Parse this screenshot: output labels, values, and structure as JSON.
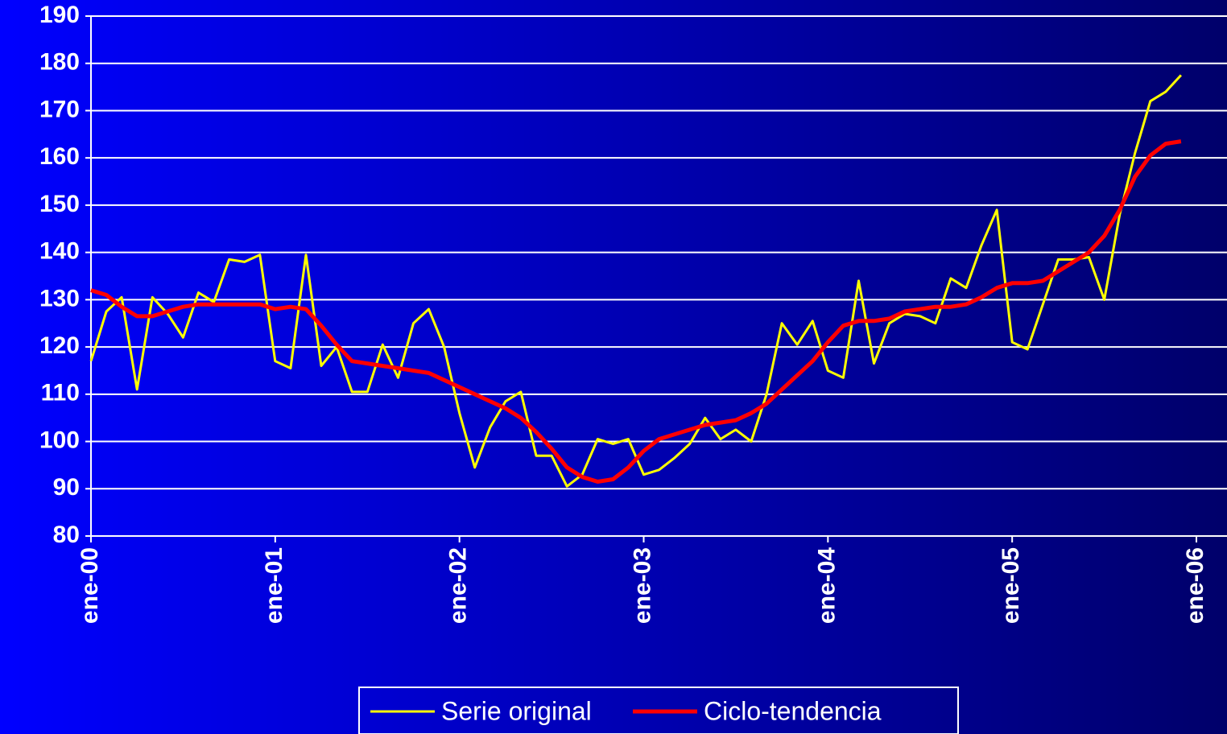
{
  "chart_data": {
    "type": "line",
    "categories": [
      "ene-00",
      null,
      null,
      null,
      null,
      null,
      null,
      null,
      null,
      null,
      null,
      null,
      "ene-01",
      null,
      null,
      null,
      null,
      null,
      null,
      null,
      null,
      null,
      null,
      null,
      "ene-02",
      null,
      null,
      null,
      null,
      null,
      null,
      null,
      null,
      null,
      null,
      null,
      "ene-03",
      null,
      null,
      null,
      null,
      null,
      null,
      null,
      null,
      null,
      null,
      null,
      "ene-04",
      null,
      null,
      null,
      null,
      null,
      null,
      null,
      null,
      null,
      null,
      null,
      "ene-05",
      null,
      null,
      null,
      null,
      null,
      null,
      null,
      null,
      null,
      null,
      null,
      "ene-06"
    ],
    "series": [
      {
        "name": "Serie original",
        "color": "#ffff00",
        "values": [
          117,
          127.5,
          130.5,
          111,
          130.5,
          127,
          122,
          131.5,
          129.5,
          138.5,
          138,
          139.5,
          117,
          115.5,
          139.5,
          116,
          120,
          110.5,
          110.5,
          120.5,
          113.5,
          125,
          128,
          120,
          106,
          94.5,
          103,
          108.5,
          110.5,
          97,
          97,
          90.5,
          93,
          100.5,
          99.5,
          100.5,
          93,
          94,
          96.5,
          99.5,
          105,
          100.5,
          102.5,
          100,
          110,
          125,
          120.5,
          125.5,
          115,
          113.5,
          134,
          116.5,
          125,
          127,
          126.5,
          125,
          134.5,
          132.5,
          141.5,
          149,
          121,
          119.5,
          129,
          138.5,
          138.5,
          139,
          130,
          148,
          161,
          172,
          174,
          177.5,
          null
        ]
      },
      {
        "name": "Ciclo-tendencia",
        "color": "#ff0000",
        "values": [
          132,
          131,
          128.5,
          126.5,
          126.5,
          127.5,
          128.5,
          129,
          129,
          129,
          129,
          129,
          128,
          128.5,
          128,
          124.5,
          120.5,
          117,
          116.5,
          116,
          115.5,
          115,
          114.5,
          113,
          111.5,
          110,
          108.5,
          107,
          105,
          102,
          98.5,
          94.5,
          92.5,
          91.5,
          92,
          94.5,
          98,
          100.5,
          101.5,
          102.5,
          103.5,
          104,
          104.5,
          106,
          108,
          111,
          114,
          117,
          121,
          124.5,
          125.5,
          125.5,
          126,
          127.5,
          128,
          128.5,
          128.5,
          129,
          130.5,
          132.5,
          133.5,
          133.5,
          134,
          136,
          138,
          140,
          143.5,
          149,
          156,
          160.5,
          163,
          163.5,
          null
        ]
      }
    ],
    "ylim": [
      80,
      190
    ],
    "yticks": [
      80,
      90,
      100,
      110,
      120,
      130,
      140,
      150,
      160,
      170,
      180,
      190
    ],
    "grid": true
  }
}
